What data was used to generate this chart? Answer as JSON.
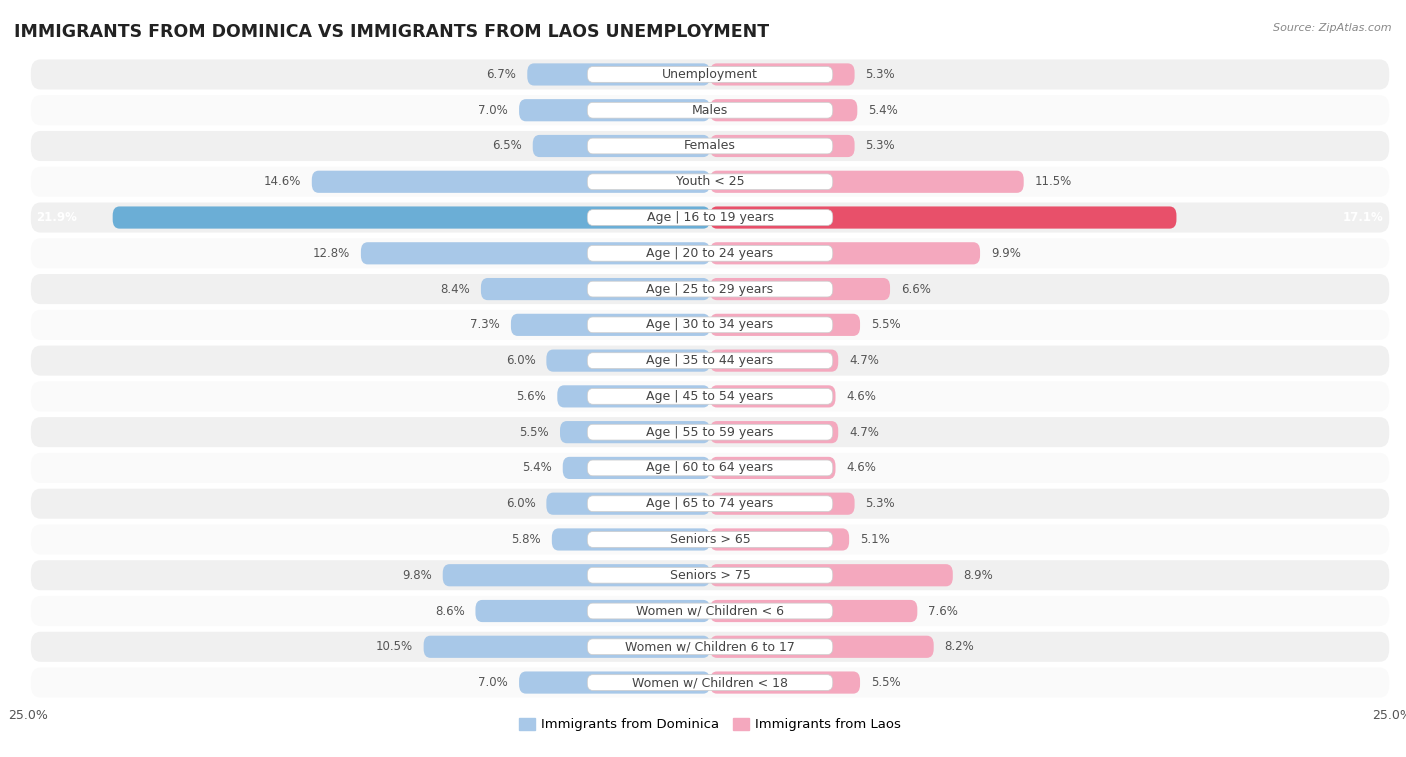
{
  "title": "IMMIGRANTS FROM DOMINICA VS IMMIGRANTS FROM LAOS UNEMPLOYMENT",
  "source": "Source: ZipAtlas.com",
  "categories": [
    "Unemployment",
    "Males",
    "Females",
    "Youth < 25",
    "Age | 16 to 19 years",
    "Age | 20 to 24 years",
    "Age | 25 to 29 years",
    "Age | 30 to 34 years",
    "Age | 35 to 44 years",
    "Age | 45 to 54 years",
    "Age | 55 to 59 years",
    "Age | 60 to 64 years",
    "Age | 65 to 74 years",
    "Seniors > 65",
    "Seniors > 75",
    "Women w/ Children < 6",
    "Women w/ Children 6 to 17",
    "Women w/ Children < 18"
  ],
  "dominica_values": [
    6.7,
    7.0,
    6.5,
    14.6,
    21.9,
    12.8,
    8.4,
    7.3,
    6.0,
    5.6,
    5.5,
    5.4,
    6.0,
    5.8,
    9.8,
    8.6,
    10.5,
    7.0
  ],
  "laos_values": [
    5.3,
    5.4,
    5.3,
    11.5,
    17.1,
    9.9,
    6.6,
    5.5,
    4.7,
    4.6,
    4.7,
    4.6,
    5.3,
    5.1,
    8.9,
    7.6,
    8.2,
    5.5
  ],
  "dominica_color": "#a8c8e8",
  "laos_color": "#f4a8be",
  "dominica_highlight_color": "#6baed6",
  "laos_highlight_color": "#e8506a",
  "background_color": "#ffffff",
  "row_color_odd": "#f0f0f0",
  "row_color_even": "#fafafa",
  "xlim": 25.0,
  "label_fontsize": 9.0,
  "title_fontsize": 12.5,
  "value_fontsize": 8.5,
  "legend_label_dominica": "Immigrants from Dominica",
  "legend_label_laos": "Immigrants from Laos"
}
